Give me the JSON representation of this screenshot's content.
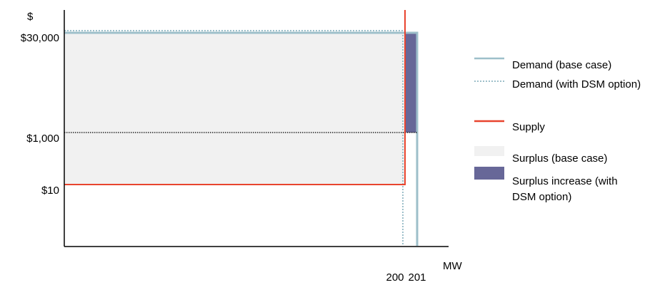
{
  "chart_data": {
    "type": "line",
    "title": "",
    "ylabel": "$",
    "xlabel": "MW",
    "y_tick_labels": [
      "$30,000",
      "$1,000",
      "$10"
    ],
    "x_tick_labels": [
      "200",
      "201"
    ],
    "series": [
      {
        "name": "Demand (base case)",
        "style": "solid",
        "color": "#9dbfca",
        "points": [
          [
            0,
            30000
          ],
          [
            201,
            30000
          ],
          [
            201,
            0
          ]
        ]
      },
      {
        "name": "Demand (with DSM option)",
        "style": "dotted",
        "color": "#9dbfca",
        "points": [
          [
            0,
            30000
          ],
          [
            200,
            30000
          ],
          [
            200,
            0
          ]
        ]
      },
      {
        "name": "Supply",
        "style": "solid",
        "color": "#e8442e",
        "points": [
          [
            0,
            10
          ],
          [
            200,
            10
          ],
          [
            200,
            30000
          ]
        ]
      }
    ],
    "annotations": [
      {
        "type": "hline",
        "style": "dotted",
        "color": "#000000",
        "y": 1000,
        "x_range": [
          0,
          201
        ]
      }
    ],
    "areas": [
      {
        "name": "Surplus (base case)",
        "color": "#f1f1f1",
        "x_range": [
          0,
          200
        ],
        "y_range": [
          10,
          30000
        ]
      },
      {
        "name": "Surplus increase (with DSM option)",
        "color": "#676798",
        "x_range": [
          200,
          201
        ],
        "y_range": [
          1000,
          30000
        ]
      }
    ],
    "legend": {
      "position": "right",
      "entries": [
        {
          "label": "Demand (base case)",
          "kind": "line-solid",
          "color": "#9dbfca"
        },
        {
          "label": "Demand (with DSM option)",
          "kind": "line-dotted",
          "color": "#9dbfca"
        },
        {
          "label": "Supply",
          "kind": "line-solid",
          "color": "#e8442e"
        },
        {
          "label": "Surplus (base case)",
          "kind": "fill",
          "color": "#f1f1f1"
        },
        {
          "label": "Surplus increase (with DSM option)",
          "kind": "fill",
          "color": "#676798"
        }
      ]
    }
  }
}
